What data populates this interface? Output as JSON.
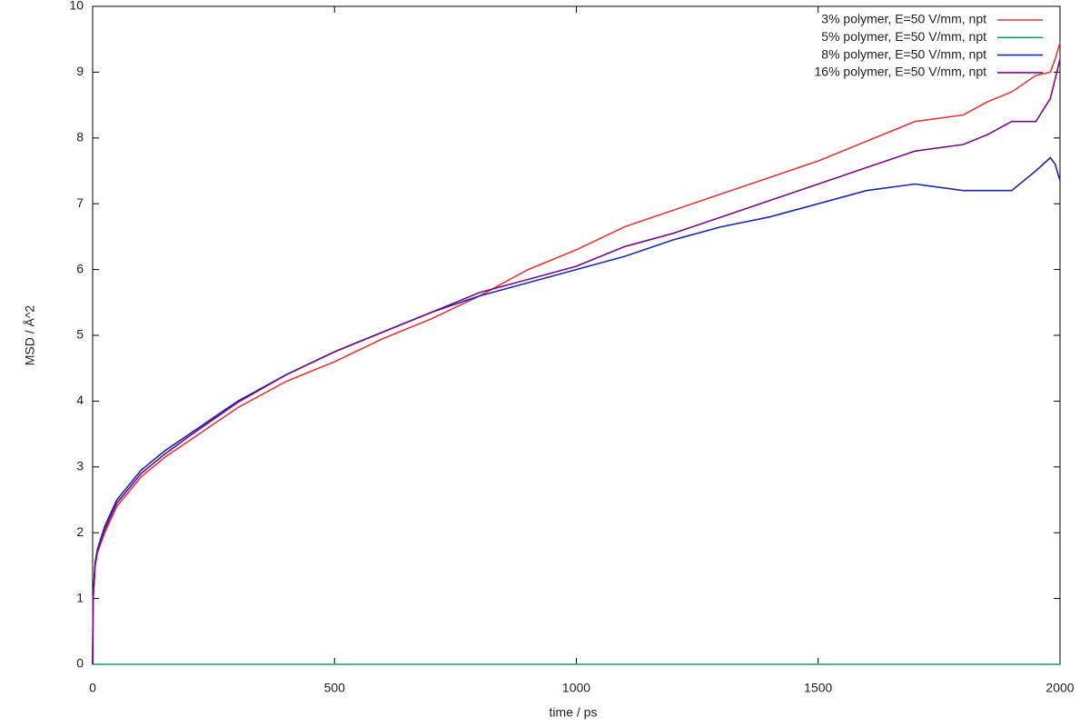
{
  "chart_data": {
    "type": "line",
    "xlabel": "time / ps",
    "ylabel": "MSD / Å^2",
    "x": [
      0,
      1,
      5,
      10,
      25,
      50,
      100,
      150,
      200,
      300,
      400,
      500,
      600,
      700,
      800,
      900,
      1000,
      1100,
      1200,
      1300,
      1400,
      1500,
      1600,
      1700,
      1800,
      1850,
      1900,
      1950,
      1980,
      1990,
      2000
    ],
    "series": [
      {
        "name": "3% polymer, E=50 V/mm, npt",
        "color": "#e8383b",
        "values": [
          0,
          1.0,
          1.5,
          1.7,
          2.0,
          2.4,
          2.85,
          3.15,
          3.4,
          3.9,
          4.3,
          4.6,
          4.95,
          5.25,
          5.6,
          6.0,
          6.3,
          6.65,
          6.9,
          7.15,
          7.4,
          7.65,
          7.95,
          8.25,
          8.35,
          8.55,
          8.7,
          8.95,
          9.0,
          9.2,
          9.45
        ]
      },
      {
        "name": "5% polymer, E=50 V/mm, npt",
        "color": "#10a060",
        "values": [
          0,
          0,
          0,
          0,
          0,
          0,
          0,
          0,
          0,
          0,
          0,
          0,
          0,
          0,
          0,
          0,
          0,
          0,
          0,
          0,
          0,
          0,
          0,
          0,
          0,
          0,
          0,
          0,
          0,
          0,
          0
        ]
      },
      {
        "name": "8% polymer, E=50 V/mm, npt",
        "color": "#1a2ab0",
        "values": [
          0,
          1.0,
          1.55,
          1.75,
          2.1,
          2.5,
          2.95,
          3.25,
          3.5,
          4.0,
          4.4,
          4.75,
          5.05,
          5.35,
          5.6,
          5.8,
          6.0,
          6.2,
          6.45,
          6.65,
          6.8,
          7.0,
          7.2,
          7.3,
          7.2,
          7.2,
          7.2,
          7.5,
          7.7,
          7.6,
          7.35
        ]
      },
      {
        "name": "16% polymer, E=50 V/mm, npt",
        "color": "#7a0a8a",
        "values": [
          0,
          1.0,
          1.5,
          1.72,
          2.05,
          2.45,
          2.9,
          3.2,
          3.47,
          3.98,
          4.4,
          4.75,
          5.05,
          5.35,
          5.65,
          5.85,
          6.05,
          6.35,
          6.55,
          6.8,
          7.05,
          7.3,
          7.55,
          7.8,
          7.9,
          8.05,
          8.25,
          8.25,
          8.6,
          8.9,
          9.2
        ]
      }
    ],
    "xlim": [
      0,
      2000
    ],
    "xticks": [
      0,
      500,
      1000,
      1500,
      2000
    ],
    "ylim": [
      0,
      10
    ],
    "yticks": [
      0,
      1,
      2,
      3,
      4,
      5,
      6,
      7,
      8,
      9,
      10
    ],
    "grid": false,
    "legend": "top-right"
  }
}
